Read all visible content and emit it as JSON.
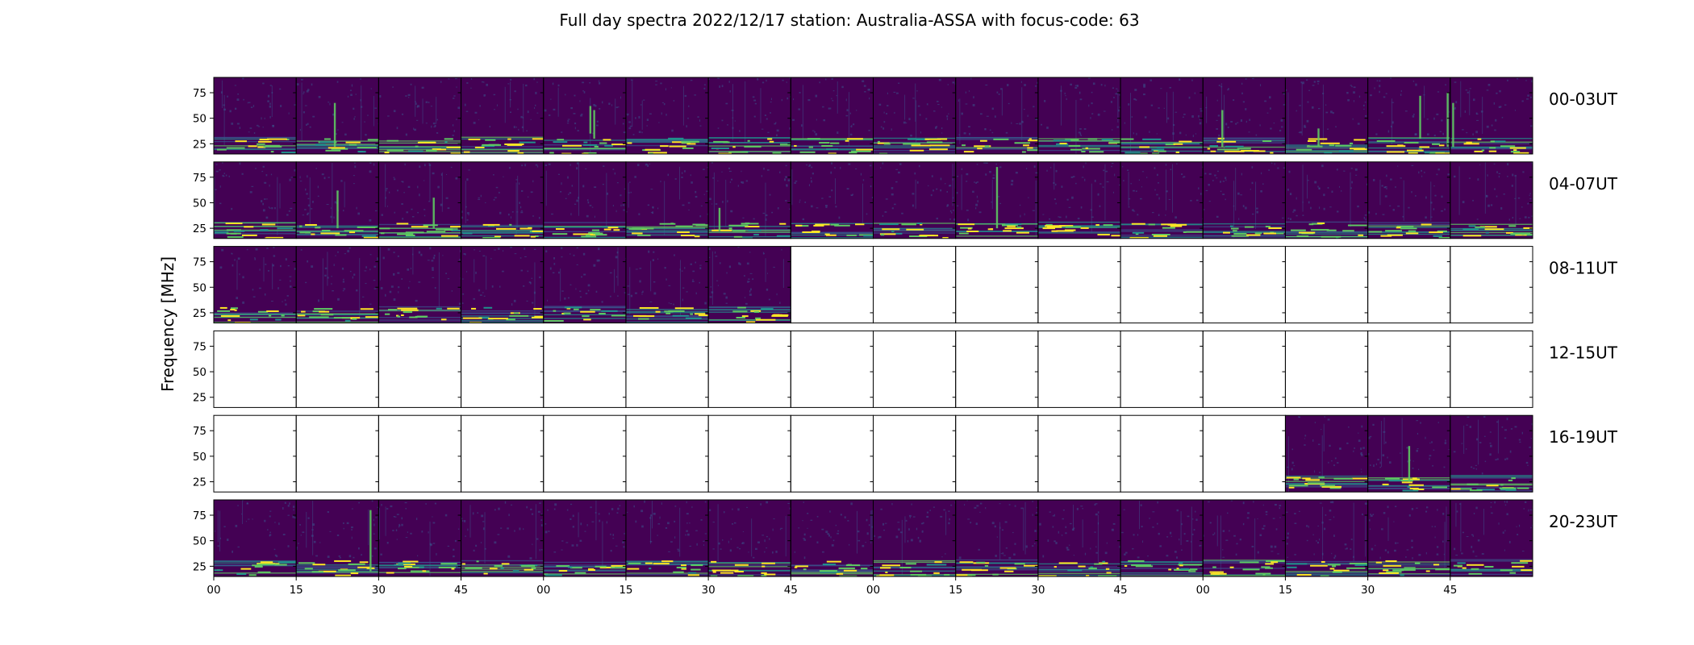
{
  "chart_data": {
    "type": "heatmap",
    "title": "Full day spectra 2022/12/17 station: Australia-ASSA with focus-code: 63",
    "ylabel": "Frequency [MHz]",
    "ylim": [
      15,
      90
    ],
    "y_ticks": [
      25,
      50,
      75
    ],
    "x_ticks": [
      "00",
      "15",
      "30",
      "45",
      "00",
      "15",
      "30",
      "45",
      "00",
      "15",
      "30",
      "45",
      "00",
      "15",
      "30",
      "45"
    ],
    "panels_per_row": 16,
    "minutes_per_panel": 15,
    "colormap": [
      "#440154",
      "#3b528b",
      "#21918c",
      "#5ec962",
      "#fde725"
    ],
    "rows": [
      {
        "label": "00-03UT",
        "available": [
          true,
          true,
          true,
          true,
          true,
          true,
          true,
          true,
          true,
          true,
          true,
          true,
          true,
          true,
          true,
          true
        ],
        "bursts": [
          {
            "panel": 1,
            "minute": 7.0,
            "f_low": 22,
            "f_high": 65
          },
          {
            "panel": 4,
            "minute": 8.5,
            "f_low": 35,
            "f_high": 62
          },
          {
            "panel": 4,
            "minute": 9.2,
            "f_low": 30,
            "f_high": 58
          },
          {
            "panel": 12,
            "minute": 3.5,
            "f_low": 22,
            "f_high": 58
          },
          {
            "panel": 13,
            "minute": 6.0,
            "f_low": 22,
            "f_high": 40
          },
          {
            "panel": 14,
            "minute": 9.5,
            "f_low": 30,
            "f_high": 72
          },
          {
            "panel": 14,
            "minute": 14.5,
            "f_low": 22,
            "f_high": 75
          },
          {
            "panel": 15,
            "minute": 0.5,
            "f_low": 22,
            "f_high": 65
          }
        ]
      },
      {
        "label": "04-07UT",
        "available": [
          true,
          true,
          true,
          true,
          true,
          true,
          true,
          true,
          true,
          true,
          true,
          true,
          true,
          true,
          true,
          true
        ],
        "bursts": [
          {
            "panel": 1,
            "minute": 7.5,
            "f_low": 25,
            "f_high": 62
          },
          {
            "panel": 2,
            "minute": 10.0,
            "f_low": 25,
            "f_high": 55
          },
          {
            "panel": 6,
            "minute": 2.0,
            "f_low": 22,
            "f_high": 45
          },
          {
            "panel": 9,
            "minute": 7.5,
            "f_low": 25,
            "f_high": 85
          }
        ]
      },
      {
        "label": "08-11UT",
        "available": [
          true,
          true,
          true,
          true,
          true,
          true,
          true,
          false,
          false,
          false,
          false,
          false,
          false,
          false,
          false,
          false
        ],
        "bursts": []
      },
      {
        "label": "12-15UT",
        "available": [
          false,
          false,
          false,
          false,
          false,
          false,
          false,
          false,
          false,
          false,
          false,
          false,
          false,
          false,
          false,
          false
        ],
        "bursts": []
      },
      {
        "label": "16-19UT",
        "available": [
          false,
          false,
          false,
          false,
          false,
          false,
          false,
          false,
          false,
          false,
          false,
          false,
          false,
          true,
          true,
          true
        ],
        "bursts": [
          {
            "panel": 14,
            "minute": 7.5,
            "f_low": 25,
            "f_high": 60
          }
        ]
      },
      {
        "label": "20-23UT",
        "available": [
          true,
          true,
          true,
          true,
          true,
          true,
          true,
          true,
          true,
          true,
          true,
          true,
          true,
          true,
          true,
          true
        ],
        "bursts": [
          {
            "panel": 1,
            "minute": 13.5,
            "f_low": 20,
            "f_high": 80
          }
        ]
      }
    ]
  }
}
